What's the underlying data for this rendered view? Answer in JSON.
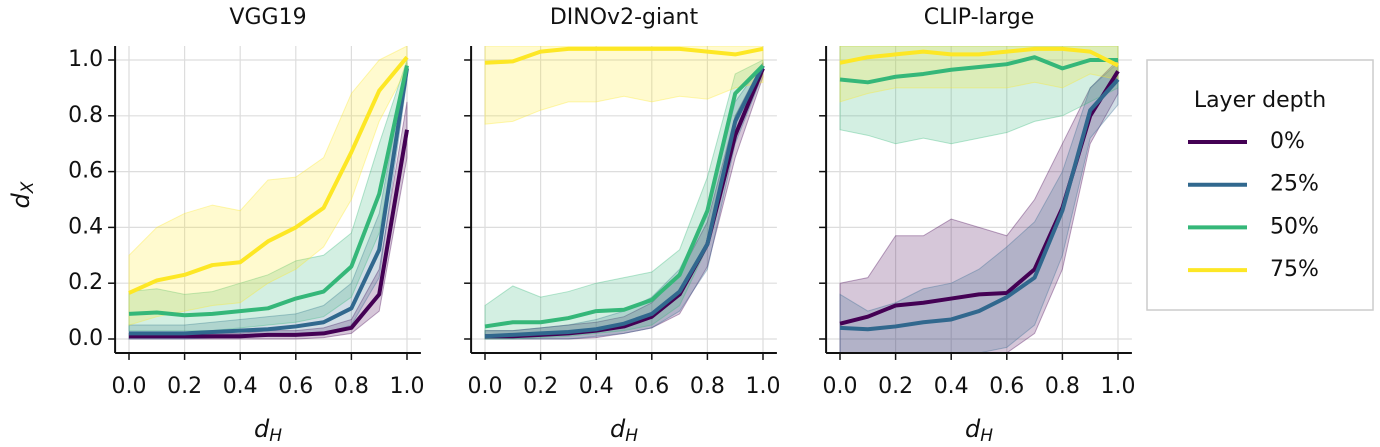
{
  "chart_data": [
    {
      "type": "line",
      "title": "VGG19",
      "xlabel": {
        "text": "d",
        "sub": "H"
      },
      "ylabel": {
        "text": "d",
        "sub": "X"
      },
      "x": [
        0,
        0.1,
        0.2,
        0.3,
        0.4,
        0.5,
        0.6,
        0.7,
        0.8,
        0.9,
        1.0
      ],
      "xlim": [
        -0.05,
        1.05
      ],
      "ylim": [
        -0.05,
        1.05
      ],
      "grid": true,
      "xticks": [
        {
          "value": 0,
          "label": "0.0"
        },
        {
          "value": 0.2,
          "label": "0.2"
        },
        {
          "value": 0.4,
          "label": "0.4"
        },
        {
          "value": 0.6,
          "label": "0.6"
        },
        {
          "value": 0.8,
          "label": "0.8"
        },
        {
          "value": 1,
          "label": "1.0"
        }
      ],
      "yticks": [
        {
          "value": 0,
          "label": "0.0"
        },
        {
          "value": 0.2,
          "label": "0.2"
        },
        {
          "value": 0.4,
          "label": "0.4"
        },
        {
          "value": 0.6,
          "label": "0.6"
        },
        {
          "value": 0.8,
          "label": "0.8"
        },
        {
          "value": 1,
          "label": "1.0"
        }
      ],
      "series": [
        {
          "color": "#440154",
          "values": [
            0.01,
            0.01,
            0.01,
            0.01,
            0.01,
            0.015,
            0.015,
            0.02,
            0.04,
            0.16,
            0.75
          ],
          "lower": [
            0,
            0,
            0,
            0,
            0,
            0,
            0,
            0.005,
            0.02,
            0.1,
            0.65
          ],
          "upper": [
            0.02,
            0.02,
            0.02,
            0.02,
            0.02,
            0.03,
            0.03,
            0.04,
            0.07,
            0.25,
            0.85
          ]
        },
        {
          "color": "#31688e",
          "values": [
            0.02,
            0.02,
            0.02,
            0.025,
            0.03,
            0.035,
            0.045,
            0.06,
            0.11,
            0.32,
            0.97
          ],
          "lower": [
            0,
            0,
            0,
            0.005,
            0.01,
            0.01,
            0.015,
            0.02,
            0.05,
            0.22,
            0.93
          ],
          "upper": [
            0.05,
            0.05,
            0.05,
            0.06,
            0.07,
            0.08,
            0.09,
            0.12,
            0.2,
            0.45,
            0.99
          ]
        },
        {
          "color": "#35b779",
          "values": [
            0.09,
            0.095,
            0.085,
            0.09,
            0.1,
            0.11,
            0.145,
            0.17,
            0.26,
            0.52,
            0.98
          ],
          "lower": [
            0.03,
            0.03,
            0.03,
            0.03,
            0.04,
            0.05,
            0.06,
            0.08,
            0.15,
            0.38,
            0.95
          ],
          "upper": [
            0.17,
            0.18,
            0.16,
            0.17,
            0.2,
            0.23,
            0.28,
            0.3,
            0.38,
            0.7,
            1.0
          ]
        },
        {
          "color": "#fde725",
          "values": [
            0.165,
            0.21,
            0.23,
            0.265,
            0.275,
            0.35,
            0.4,
            0.47,
            0.67,
            0.89,
            1.01
          ],
          "lower": [
            0.05,
            0.08,
            0.1,
            0.12,
            0.13,
            0.2,
            0.25,
            0.33,
            0.5,
            0.78,
            0.97
          ],
          "upper": [
            0.3,
            0.4,
            0.45,
            0.48,
            0.46,
            0.57,
            0.58,
            0.65,
            0.88,
            1.0,
            1.05
          ]
        }
      ]
    },
    {
      "type": "line",
      "title": "DINOv2-giant",
      "xlabel": {
        "text": "d",
        "sub": "H"
      },
      "x": [
        0,
        0.1,
        0.2,
        0.3,
        0.4,
        0.5,
        0.6,
        0.7,
        0.8,
        0.9,
        1.0
      ],
      "xlim": [
        -0.05,
        1.05
      ],
      "ylim": [
        -0.05,
        1.05
      ],
      "grid": true,
      "xticks": [
        {
          "value": 0,
          "label": "0.0"
        },
        {
          "value": 0.2,
          "label": "0.2"
        },
        {
          "value": 0.4,
          "label": "0.4"
        },
        {
          "value": 0.6,
          "label": "0.6"
        },
        {
          "value": 0.8,
          "label": "0.8"
        },
        {
          "value": 1,
          "label": "1.0"
        }
      ],
      "yticks": [
        0,
        0.2,
        0.4,
        0.6,
        0.8,
        1
      ],
      "series": [
        {
          "color": "#440154",
          "values": [
            0.01,
            0.01,
            0.015,
            0.02,
            0.03,
            0.045,
            0.08,
            0.16,
            0.34,
            0.73,
            0.97
          ],
          "lower": [
            0,
            0,
            0,
            0,
            0.005,
            0.02,
            0.04,
            0.09,
            0.26,
            0.65,
            0.94
          ],
          "upper": [
            0.03,
            0.03,
            0.04,
            0.05,
            0.06,
            0.08,
            0.13,
            0.23,
            0.42,
            0.8,
            0.99
          ]
        },
        {
          "color": "#31688e",
          "values": [
            0.01,
            0.015,
            0.02,
            0.025,
            0.035,
            0.055,
            0.09,
            0.17,
            0.34,
            0.78,
            0.98
          ],
          "lower": [
            0,
            0,
            0,
            0,
            0.01,
            0.02,
            0.04,
            0.1,
            0.25,
            0.7,
            0.95
          ],
          "upper": [
            0.03,
            0.03,
            0.04,
            0.05,
            0.07,
            0.1,
            0.15,
            0.25,
            0.45,
            0.85,
            0.99
          ]
        },
        {
          "color": "#35b779",
          "values": [
            0.045,
            0.06,
            0.06,
            0.075,
            0.1,
            0.105,
            0.14,
            0.23,
            0.46,
            0.88,
            0.98
          ],
          "lower": [
            0,
            0,
            0.005,
            0.01,
            0.02,
            0.03,
            0.05,
            0.12,
            0.33,
            0.8,
            0.96
          ],
          "upper": [
            0.12,
            0.19,
            0.15,
            0.17,
            0.2,
            0.22,
            0.24,
            0.32,
            0.58,
            0.95,
            1.0
          ]
        },
        {
          "color": "#fde725",
          "values": [
            0.99,
            0.995,
            1.03,
            1.04,
            1.04,
            1.04,
            1.04,
            1.04,
            1.03,
            1.02,
            1.04
          ],
          "lower": [
            0.77,
            0.78,
            0.82,
            0.85,
            0.85,
            0.87,
            0.85,
            0.87,
            0.86,
            0.9,
            0.92
          ],
          "upper": [
            1.05,
            1.05,
            1.05,
            1.05,
            1.05,
            1.05,
            1.05,
            1.05,
            1.05,
            1.05,
            1.05
          ]
        }
      ]
    },
    {
      "type": "line",
      "title": "CLIP-large",
      "xlabel": {
        "text": "d",
        "sub": "H"
      },
      "x": [
        0,
        0.1,
        0.2,
        0.3,
        0.4,
        0.5,
        0.6,
        0.7,
        0.8,
        0.9,
        1.0
      ],
      "xlim": [
        -0.05,
        1.05
      ],
      "ylim": [
        -0.05,
        1.05
      ],
      "grid": true,
      "xticks": [
        {
          "value": 0,
          "label": "0.0"
        },
        {
          "value": 0.2,
          "label": "0.2"
        },
        {
          "value": 0.4,
          "label": "0.4"
        },
        {
          "value": 0.6,
          "label": "0.6"
        },
        {
          "value": 0.8,
          "label": "0.8"
        },
        {
          "value": 1,
          "label": "1.0"
        }
      ],
      "yticks": [
        0,
        0.2,
        0.4,
        0.6,
        0.8,
        1
      ],
      "legend": "outside right",
      "legend_title": "Layer depth",
      "series": [
        {
          "name": "0%",
          "color": "#440154",
          "values": [
            0.055,
            0.08,
            0.12,
            0.13,
            0.145,
            0.16,
            0.165,
            0.25,
            0.47,
            0.8,
            0.96
          ],
          "lower": [
            -0.05,
            -0.05,
            -0.05,
            -0.05,
            -0.05,
            -0.05,
            -0.05,
            0.02,
            0.25,
            0.7,
            0.88
          ],
          "upper": [
            0.2,
            0.22,
            0.37,
            0.37,
            0.43,
            0.4,
            0.37,
            0.5,
            0.7,
            0.9,
            1.0
          ]
        },
        {
          "name": "25%",
          "color": "#31688e",
          "values": [
            0.04,
            0.035,
            0.045,
            0.06,
            0.07,
            0.1,
            0.15,
            0.22,
            0.46,
            0.82,
            0.93
          ],
          "lower": [
            -0.05,
            -0.05,
            -0.05,
            -0.05,
            -0.05,
            -0.05,
            -0.03,
            0.05,
            0.3,
            0.72,
            0.84
          ],
          "upper": [
            0.16,
            0.1,
            0.13,
            0.18,
            0.2,
            0.25,
            0.33,
            0.42,
            0.6,
            0.9,
            0.99
          ]
        },
        {
          "name": "50%",
          "color": "#35b779",
          "values": [
            0.93,
            0.92,
            0.94,
            0.95,
            0.965,
            0.975,
            0.985,
            1.01,
            0.97,
            1.0,
            1.0
          ],
          "lower": [
            0.75,
            0.73,
            0.7,
            0.72,
            0.7,
            0.72,
            0.74,
            0.78,
            0.8,
            0.85,
            0.9
          ],
          "upper": [
            1.05,
            1.05,
            1.05,
            1.05,
            1.05,
            1.05,
            1.05,
            1.05,
            1.05,
            1.05,
            1.05
          ]
        },
        {
          "name": "75%",
          "color": "#fde725",
          "values": [
            0.99,
            1.01,
            1.02,
            1.03,
            1.02,
            1.02,
            1.03,
            1.04,
            1.04,
            1.03,
            0.98
          ],
          "lower": [
            0.85,
            0.88,
            0.9,
            0.9,
            0.9,
            0.9,
            0.9,
            0.92,
            0.9,
            0.95,
            0.93
          ],
          "upper": [
            1.05,
            1.05,
            1.05,
            1.05,
            1.05,
            1.05,
            1.05,
            1.05,
            1.05,
            1.05,
            1.05
          ]
        }
      ]
    }
  ]
}
